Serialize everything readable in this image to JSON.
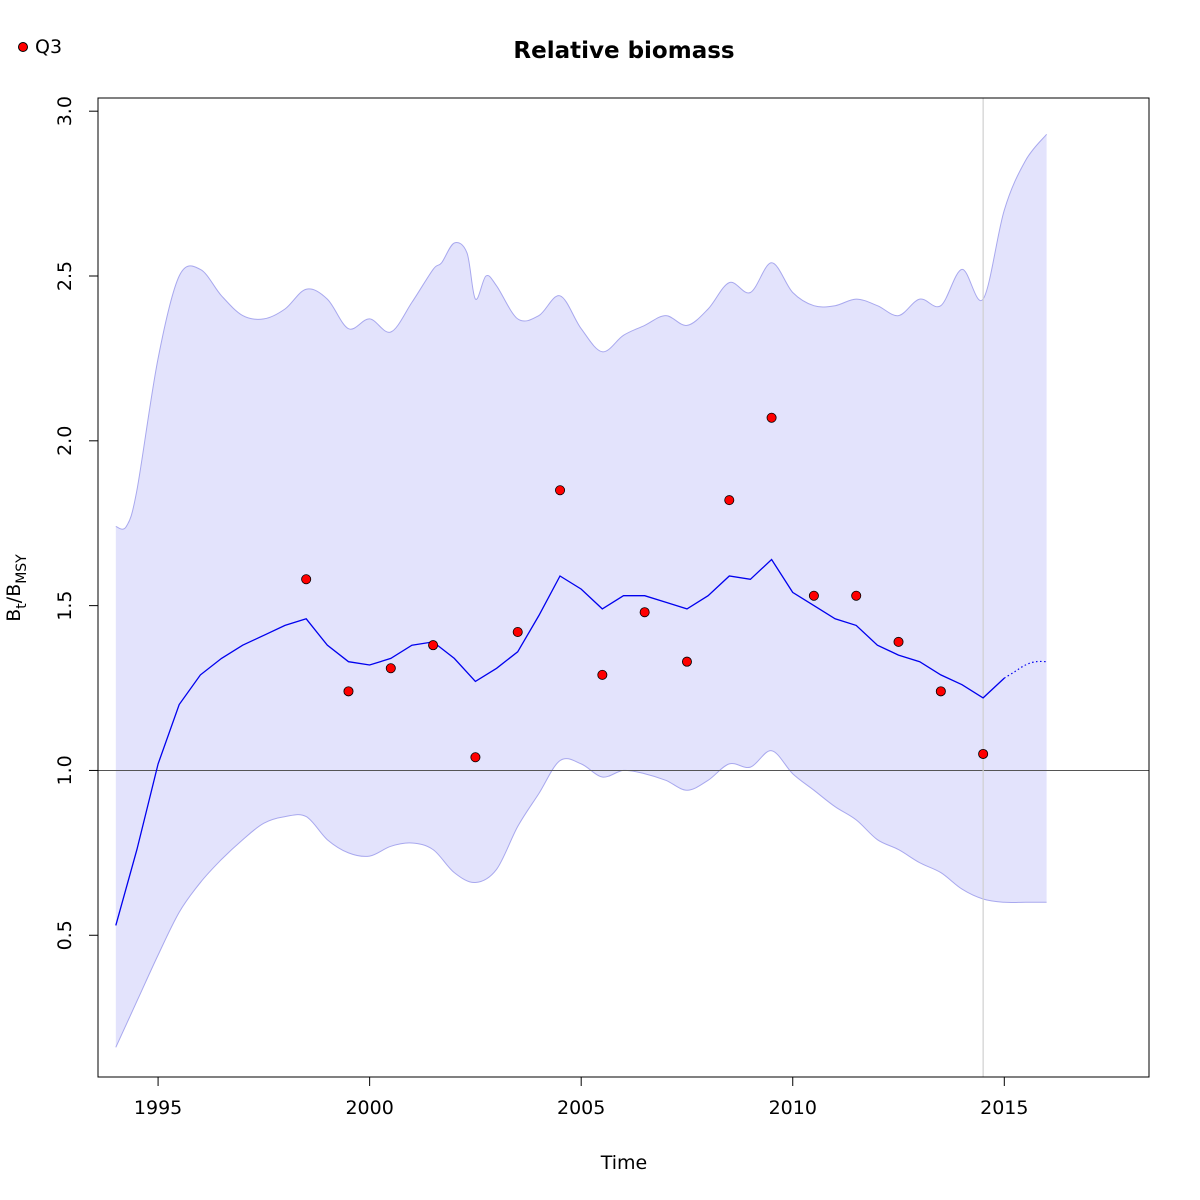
{
  "chart_data": {
    "type": "line",
    "title": "Relative biomass",
    "xlabel": "Time",
    "ylabel": {
      "main": "B",
      "sub1": "t",
      "sep": "/B",
      "sub2": "MSY"
    },
    "xlim": [
      1993.58,
      2018.42
    ],
    "ylim": [
      0.07,
      3.04
    ],
    "x_ticks": [
      1995,
      2000,
      2005,
      2010,
      2015
    ],
    "x_tick_labels": [
      "1995",
      "2000",
      "2005",
      "2010",
      "2015"
    ],
    "y_ticks": [
      0.5,
      1.0,
      1.5,
      2.0,
      2.5,
      3.0
    ],
    "y_tick_labels": [
      "0.5",
      "1.0",
      "1.5",
      "2.0",
      "2.5",
      "3.0"
    ],
    "grid": false,
    "reference_hline": 1.0,
    "reference_vline": 2014.5,
    "legend": {
      "position": "top-left",
      "entries": [
        {
          "name": "Q3",
          "marker": "circle",
          "color": "#ff0000"
        }
      ]
    },
    "colors": {
      "estimate": "#0000ee",
      "band_fill": "#e3e3fc",
      "band_edge": "#a8a8ee",
      "points": "#ff0000",
      "hline": "#555555",
      "vline": "#cfcfcf"
    },
    "series": [
      {
        "role": "estimate",
        "x": [
          1994.0,
          1994.5,
          1995.0,
          1995.5,
          1996.0,
          1996.5,
          1997.0,
          1997.5,
          1998.0,
          1998.5,
          1999.0,
          1999.5,
          2000.0,
          2000.5,
          2001.0,
          2001.5,
          2002.0,
          2002.5,
          2003.0,
          2003.5,
          2004.0,
          2004.5,
          2005.0,
          2005.5,
          2006.0,
          2006.5,
          2007.0,
          2007.5,
          2008.0,
          2008.5,
          2009.0,
          2009.5,
          2010.0,
          2010.5,
          2011.0,
          2011.5,
          2012.0,
          2012.5,
          2013.0,
          2013.5,
          2014.0,
          2014.5,
          2015.0
        ],
        "y": [
          0.53,
          0.76,
          1.02,
          1.2,
          1.29,
          1.34,
          1.38,
          1.41,
          1.44,
          1.46,
          1.38,
          1.33,
          1.32,
          1.34,
          1.38,
          1.39,
          1.34,
          1.27,
          1.31,
          1.36,
          1.47,
          1.59,
          1.55,
          1.49,
          1.53,
          1.53,
          1.51,
          1.49,
          1.53,
          1.59,
          1.58,
          1.64,
          1.54,
          1.5,
          1.46,
          1.44,
          1.38,
          1.35,
          1.33,
          1.29,
          1.26,
          1.22,
          1.28
        ]
      },
      {
        "role": "prediction",
        "x": [
          2015.0,
          2015.25,
          2015.5,
          2015.75,
          2016.0
        ],
        "y": [
          1.28,
          1.3,
          1.32,
          1.33,
          1.33
        ]
      },
      {
        "role": "ci_upper",
        "x": [
          1994.0,
          1994.25,
          1994.5,
          1995.0,
          1995.5,
          1996.0,
          1996.5,
          1997.0,
          1997.5,
          1998.0,
          1998.5,
          1999.0,
          1999.5,
          2000.0,
          2000.5,
          2001.0,
          2001.5,
          2001.7,
          2002.0,
          2002.3,
          2002.5,
          2002.75,
          2003.0,
          2003.5,
          2004.0,
          2004.5,
          2005.0,
          2005.5,
          2006.0,
          2006.5,
          2007.0,
          2007.5,
          2008.0,
          2008.5,
          2009.0,
          2009.5,
          2010.0,
          2010.5,
          2011.0,
          2011.5,
          2012.0,
          2012.5,
          2013.0,
          2013.5,
          2014.0,
          2014.5,
          2015.0,
          2015.5,
          2016.0
        ],
        "y": [
          1.74,
          1.74,
          1.85,
          2.25,
          2.5,
          2.52,
          2.44,
          2.38,
          2.37,
          2.4,
          2.46,
          2.43,
          2.34,
          2.37,
          2.33,
          2.42,
          2.52,
          2.54,
          2.6,
          2.57,
          2.43,
          2.5,
          2.47,
          2.37,
          2.38,
          2.44,
          2.34,
          2.27,
          2.32,
          2.35,
          2.38,
          2.35,
          2.4,
          2.48,
          2.45,
          2.54,
          2.45,
          2.41,
          2.41,
          2.43,
          2.41,
          2.38,
          2.43,
          2.41,
          2.52,
          2.43,
          2.7,
          2.85,
          2.93
        ]
      },
      {
        "role": "ci_lower",
        "x": [
          1994.0,
          1994.5,
          1995.0,
          1995.5,
          1996.0,
          1996.5,
          1997.0,
          1997.5,
          1998.0,
          1998.5,
          1999.0,
          1999.5,
          2000.0,
          2000.5,
          2001.0,
          2001.5,
          2002.0,
          2002.5,
          2003.0,
          2003.5,
          2004.0,
          2004.5,
          2005.0,
          2005.5,
          2006.0,
          2006.5,
          2007.0,
          2007.5,
          2008.0,
          2008.5,
          2009.0,
          2009.5,
          2010.0,
          2010.5,
          2011.0,
          2011.5,
          2012.0,
          2012.5,
          2013.0,
          2013.5,
          2014.0,
          2014.5,
          2015.0,
          2015.5,
          2016.0
        ],
        "y": [
          0.16,
          0.3,
          0.44,
          0.57,
          0.66,
          0.73,
          0.79,
          0.84,
          0.86,
          0.86,
          0.79,
          0.75,
          0.74,
          0.77,
          0.78,
          0.76,
          0.69,
          0.66,
          0.7,
          0.83,
          0.93,
          1.03,
          1.02,
          0.98,
          1.0,
          0.99,
          0.97,
          0.94,
          0.97,
          1.02,
          1.01,
          1.06,
          0.99,
          0.94,
          0.89,
          0.85,
          0.79,
          0.76,
          0.72,
          0.69,
          0.64,
          0.61,
          0.6,
          0.6,
          0.6
        ]
      },
      {
        "role": "observations",
        "name": "Q3",
        "x": [
          1998.5,
          1999.5,
          2000.5,
          2001.5,
          2002.5,
          2003.5,
          2004.5,
          2005.5,
          2006.5,
          2007.5,
          2008.5,
          2009.5,
          2010.5,
          2011.5,
          2012.5,
          2013.5,
          2014.5
        ],
        "y": [
          1.58,
          1.24,
          1.31,
          1.38,
          1.04,
          1.42,
          1.85,
          1.29,
          1.48,
          1.33,
          1.82,
          2.07,
          1.53,
          1.53,
          1.39,
          1.24,
          1.05
        ]
      }
    ]
  }
}
